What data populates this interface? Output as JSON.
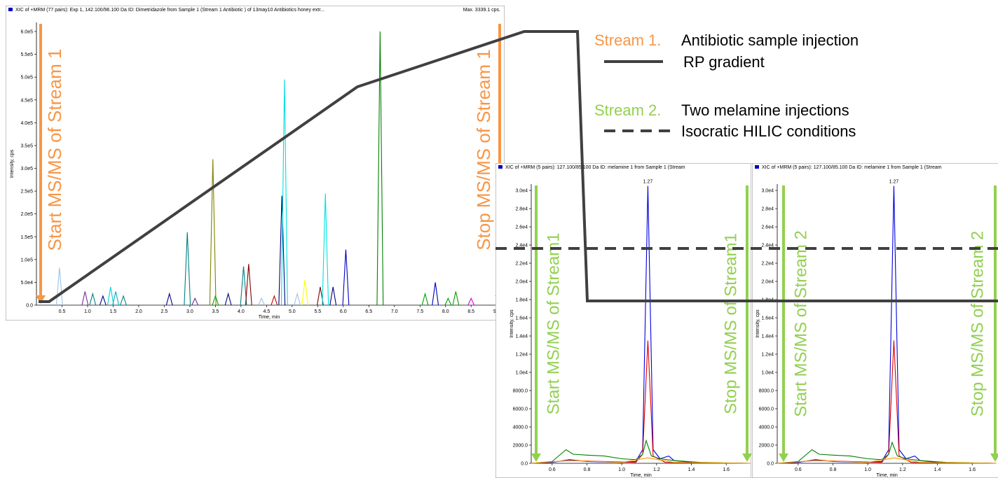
{
  "chart_data": [
    {
      "type": "line",
      "title": "XIC of +MRM (77 pairs): Exp 1, 142.100/96.100 Da ID: Dimetridazole from Sample 1 (Stream 1 Antibiotic ) of 13may10 Antibiotics honey extr...",
      "title_right": "Max. 3339.1 cps.",
      "xlabel": "Time, min",
      "ylabel": "Intensity, cps",
      "xlim": [
        0,
        9.1
      ],
      "ylim": [
        0,
        620000
      ],
      "xticks": [
        0.5,
        {
          "value": 1,
          "label": "1.0"
        },
        1.5,
        {
          "value": 2,
          "label": "2.0"
        },
        2.5,
        {
          "value": 3,
          "label": "3.0"
        },
        3.5,
        {
          "value": 4,
          "label": "4.0"
        },
        4.5,
        {
          "value": 5,
          "label": "5.0"
        },
        5.5,
        {
          "value": 6,
          "label": "6.0"
        },
        6.5,
        {
          "value": 7,
          "label": "7.0"
        },
        7.5,
        {
          "value": 8,
          "label": "8.0"
        },
        8.5,
        {
          "value": 9,
          "label": "9.0"
        }
      ],
      "yticks": [
        {
          "value": 0,
          "label": "0.0"
        },
        {
          "value": 50000,
          "label": "5.0e4"
        },
        {
          "value": 100000,
          "label": "1.0e5"
        },
        {
          "value": 150000,
          "label": "1.5e5"
        },
        {
          "value": 200000,
          "label": "2.0e5"
        },
        {
          "value": 250000,
          "label": "2.5e5"
        },
        {
          "value": 300000,
          "label": "3.0e5"
        },
        {
          "value": 350000,
          "label": "3.5e5"
        },
        {
          "value": 400000,
          "label": "4.0e5"
        },
        {
          "value": 450000,
          "label": "4.5e5"
        },
        {
          "value": 500000,
          "label": "5.0e5"
        },
        {
          "value": 550000,
          "label": "5.5e5"
        },
        {
          "value": 600000,
          "label": "6.0e5"
        }
      ],
      "annotation_start": "Start MS/MS of Stream 1",
      "annotation_stop": "Stop MS/MS of Stream 1",
      "annotation_color": "#f79646",
      "series": [
        {
          "color": "#9dc3e6",
          "x": [
            0.39,
            0.45,
            0.51
          ],
          "values": [
            0,
            82000,
            0
          ]
        },
        {
          "color": "#7030a0",
          "x": [
            0.89,
            0.95,
            1.01
          ],
          "values": [
            0,
            30000,
            0
          ]
        },
        {
          "color": "#008080",
          "x": [
            1.04,
            1.1,
            1.16
          ],
          "values": [
            0,
            25000,
            0
          ]
        },
        {
          "color": "#000080",
          "x": [
            1.24,
            1.3,
            1.36
          ],
          "values": [
            0,
            20000,
            0
          ]
        },
        {
          "color": "#00d0e0",
          "x": [
            1.39,
            1.45,
            1.51
          ],
          "values": [
            0,
            40000,
            0
          ]
        },
        {
          "color": "#00b0c0",
          "x": [
            1.49,
            1.55,
            1.61
          ],
          "values": [
            0,
            30000,
            0
          ]
        },
        {
          "color": "#008080",
          "x": [
            1.64,
            1.7,
            1.76
          ],
          "values": [
            0,
            20000,
            0
          ]
        },
        {
          "color": "#000080",
          "x": [
            2.54,
            2.6,
            2.66
          ],
          "values": [
            0,
            25000,
            0
          ]
        },
        {
          "color": "#008080",
          "x": [
            2.89,
            2.95,
            3.01
          ],
          "values": [
            0,
            160000,
            0
          ]
        },
        {
          "color": "#7030a0",
          "x": [
            3.04,
            3.1,
            3.16
          ],
          "values": [
            0,
            15000,
            0
          ]
        },
        {
          "color": "#808000",
          "x": [
            3.39,
            3.45,
            3.51
          ],
          "values": [
            0,
            320000,
            0
          ]
        },
        {
          "color": "#00a000",
          "x": [
            3.44,
            3.5,
            3.56
          ],
          "values": [
            0,
            20000,
            0
          ]
        },
        {
          "color": "#000080",
          "x": [
            3.69,
            3.75,
            3.81
          ],
          "values": [
            0,
            25000,
            0
          ]
        },
        {
          "color": "#008080",
          "x": [
            3.99,
            4.05,
            4.11
          ],
          "values": [
            0,
            85000,
            0
          ]
        },
        {
          "color": "#800000",
          "x": [
            4.09,
            4.15,
            4.21
          ],
          "values": [
            0,
            90000,
            0
          ]
        },
        {
          "color": "#9dc3e6",
          "x": [
            4.34,
            4.4,
            4.46
          ],
          "values": [
            0,
            15000,
            0
          ]
        },
        {
          "color": "#c00000",
          "x": [
            4.59,
            4.65,
            4.71
          ],
          "values": [
            0,
            20000,
            0
          ]
        },
        {
          "color": "#000080",
          "x": [
            4.74,
            4.8,
            4.86
          ],
          "values": [
            0,
            240000,
            0
          ]
        },
        {
          "color": "#00e0e0",
          "x": [
            4.79,
            4.85,
            4.91
          ],
          "values": [
            0,
            495000,
            0
          ]
        },
        {
          "color": "#9dc3e6",
          "x": [
            5.04,
            5.1,
            5.16
          ],
          "values": [
            0,
            25000,
            0
          ]
        },
        {
          "color": "#ffff00",
          "x": [
            5.19,
            5.25,
            5.31
          ],
          "values": [
            0,
            55000,
            0
          ]
        },
        {
          "color": "#800000",
          "x": [
            5.49,
            5.55,
            5.61
          ],
          "values": [
            0,
            40000,
            0
          ]
        },
        {
          "color": "#00e0e0",
          "x": [
            5.59,
            5.65,
            5.71
          ],
          "values": [
            0,
            245000,
            0
          ]
        },
        {
          "color": "#000080",
          "x": [
            5.74,
            5.8,
            5.86
          ],
          "values": [
            0,
            40000,
            0
          ]
        },
        {
          "color": "#0000c0",
          "x": [
            5.99,
            6.05,
            6.11
          ],
          "values": [
            0,
            122000,
            0
          ]
        },
        {
          "color": "#008000",
          "x": [
            6.66,
            6.72,
            6.78
          ],
          "values": [
            0,
            600000,
            0
          ]
        },
        {
          "color": "#00a000",
          "x": [
            7.54,
            7.6,
            7.66
          ],
          "values": [
            0,
            25000,
            0
          ]
        },
        {
          "color": "#0000c0",
          "x": [
            7.74,
            7.8,
            7.86
          ],
          "values": [
            0,
            50000,
            0
          ]
        },
        {
          "color": "#00a000",
          "x": [
            7.99,
            8.05,
            8.11
          ],
          "values": [
            0,
            15000,
            0
          ]
        },
        {
          "color": "#00a000",
          "x": [
            8.14,
            8.2,
            8.26
          ],
          "values": [
            0,
            30000,
            0
          ]
        },
        {
          "color": "#e000e0",
          "x": [
            8.44,
            8.5,
            8.56
          ],
          "values": [
            0,
            15000,
            0
          ]
        }
      ]
    },
    {
      "type": "line",
      "title": "XIC of +MRM (5 pairs): 127.100/85.100 Da ID: melamine 1 from Sample 1 (Stream",
      "xlabel": "Time, min",
      "ylabel": "Intensity, cps",
      "xlim": [
        0.48,
        1.74
      ],
      "ylim": [
        0,
        30700
      ],
      "xticks": [
        0.6,
        0.8,
        {
          "value": 1,
          "label": "1.0"
        },
        1.2,
        1.4,
        1.6
      ],
      "yticks": [
        {
          "value": 0,
          "label": "0.0"
        },
        {
          "value": 2000,
          "label": "2000.0"
        },
        {
          "value": 4000,
          "label": "4000.0"
        },
        {
          "value": 6000,
          "label": "6000.0"
        },
        {
          "value": 8000,
          "label": "8000.0"
        },
        {
          "value": 10000,
          "label": "1.0e4"
        },
        {
          "value": 12000,
          "label": "1.2e4"
        },
        {
          "value": 14000,
          "label": "1.4e4"
        },
        {
          "value": 16000,
          "label": "1.6e4"
        },
        {
          "value": 18000,
          "label": "1.8e4"
        },
        {
          "value": 20000,
          "label": "2.0e4"
        },
        {
          "value": 22000,
          "label": "2.2e4"
        },
        {
          "value": 24000,
          "label": "2.4e4"
        },
        {
          "value": 26000,
          "label": "2.6e4"
        },
        {
          "value": 28000,
          "label": "2.8e4"
        },
        {
          "value": 30000,
          "label": "3.0e4"
        }
      ],
      "peak_label": "1.27",
      "annotation_start": "Start MS/MS of Stream1",
      "annotation_stop": "Stop MS/MS of Stream1",
      "annotation_color": "#92d050",
      "series": [
        {
          "color": "#0000e0",
          "x": [
            0.48,
            0.6,
            0.7,
            0.8,
            0.9,
            1.0,
            1.08,
            1.12,
            1.15,
            1.18,
            1.22,
            1.27,
            1.3,
            1.4,
            1.5,
            1.74
          ],
          "values": [
            0,
            100,
            400,
            200,
            150,
            100,
            200,
            1500,
            30500,
            1500,
            500,
            800,
            300,
            100,
            50,
            0
          ]
        },
        {
          "color": "#e00000",
          "x": [
            0.48,
            0.7,
            0.9,
            1.08,
            1.12,
            1.15,
            1.18,
            1.25,
            1.74
          ],
          "values": [
            0,
            300,
            200,
            100,
            1000,
            13500,
            800,
            100,
            0
          ]
        },
        {
          "color": "#008000",
          "x": [
            0.48,
            0.6,
            0.68,
            0.72,
            0.8,
            0.9,
            1.0,
            1.08,
            1.12,
            1.14,
            1.17,
            1.22,
            1.3,
            1.45,
            1.74
          ],
          "values": [
            0,
            200,
            1500,
            1000,
            900,
            800,
            500,
            400,
            1000,
            2500,
            800,
            500,
            300,
            100,
            0
          ]
        },
        {
          "color": "#ff9900",
          "x": [
            0.48,
            0.7,
            1.0,
            1.15,
            1.3,
            1.74
          ],
          "values": [
            0,
            300,
            100,
            600,
            100,
            0
          ]
        }
      ]
    },
    {
      "type": "line",
      "title": "XIC of +MRM (5 pairs): 127.100/85.100 Da ID: melamine 1 from Sample 1 (Stream",
      "xlabel": "Time, min",
      "ylabel": "Intensity, cps",
      "xlim": [
        0.48,
        1.74
      ],
      "ylim": [
        0,
        30700
      ],
      "xticks": [
        0.6,
        0.8,
        {
          "value": 1,
          "label": "1.0"
        },
        1.2,
        1.4,
        1.6
      ],
      "yticks": [
        {
          "value": 0,
          "label": "0.0"
        },
        {
          "value": 2000,
          "label": "2000.0"
        },
        {
          "value": 4000,
          "label": "4000.0"
        },
        {
          "value": 6000,
          "label": "6000.0"
        },
        {
          "value": 8000,
          "label": "8000.0"
        },
        {
          "value": 10000,
          "label": "1.0e4"
        },
        {
          "value": 12000,
          "label": "1.2e4"
        },
        {
          "value": 14000,
          "label": "1.4e4"
        },
        {
          "value": 16000,
          "label": "1.6e4"
        },
        {
          "value": 18000,
          "label": "1.8e4"
        },
        {
          "value": 20000,
          "label": "2.0e4"
        },
        {
          "value": 22000,
          "label": "2.2e4"
        },
        {
          "value": 24000,
          "label": "2.4e4"
        },
        {
          "value": 26000,
          "label": "2.6e4"
        },
        {
          "value": 28000,
          "label": "2.8e4"
        },
        {
          "value": 30000,
          "label": "3.0e4"
        }
      ],
      "peak_label": "1.27",
      "annotation_start": "Start MS/MS of Stream 2",
      "annotation_stop": "Stop MS/MS of Stream 2",
      "annotation_color": "#92d050",
      "series": [
        {
          "color": "#0000e0",
          "x": [
            0.48,
            0.6,
            0.7,
            0.8,
            0.9,
            1.0,
            1.08,
            1.12,
            1.15,
            1.18,
            1.22,
            1.27,
            1.3,
            1.4,
            1.5,
            1.74
          ],
          "values": [
            0,
            100,
            400,
            200,
            150,
            100,
            200,
            1500,
            30500,
            1500,
            500,
            800,
            300,
            100,
            50,
            0
          ]
        },
        {
          "color": "#e00000",
          "x": [
            0.48,
            0.7,
            0.9,
            1.08,
            1.12,
            1.15,
            1.18,
            1.25,
            1.74
          ],
          "values": [
            0,
            300,
            200,
            100,
            1000,
            13500,
            800,
            100,
            0
          ]
        },
        {
          "color": "#008000",
          "x": [
            0.48,
            0.6,
            0.68,
            0.72,
            0.8,
            0.9,
            1.0,
            1.08,
            1.12,
            1.14,
            1.17,
            1.22,
            1.3,
            1.45,
            1.74
          ],
          "values": [
            0,
            200,
            1500,
            1000,
            900,
            800,
            500,
            400,
            1000,
            2300,
            800,
            500,
            300,
            100,
            0
          ]
        },
        {
          "color": "#ff9900",
          "x": [
            0.48,
            0.7,
            1.0,
            1.15,
            1.3,
            1.74
          ],
          "values": [
            0,
            300,
            100,
            600,
            100,
            0
          ]
        }
      ]
    }
  ],
  "overlay": {
    "stream1_label": "Stream 1.",
    "stream1_desc": "Antibiotic sample injection",
    "stream1_line": "RP gradient",
    "stream2_label": "Stream 2.",
    "stream2_desc": "Two melamine  injections",
    "stream2_line": "Isocratic HILIC conditions"
  }
}
